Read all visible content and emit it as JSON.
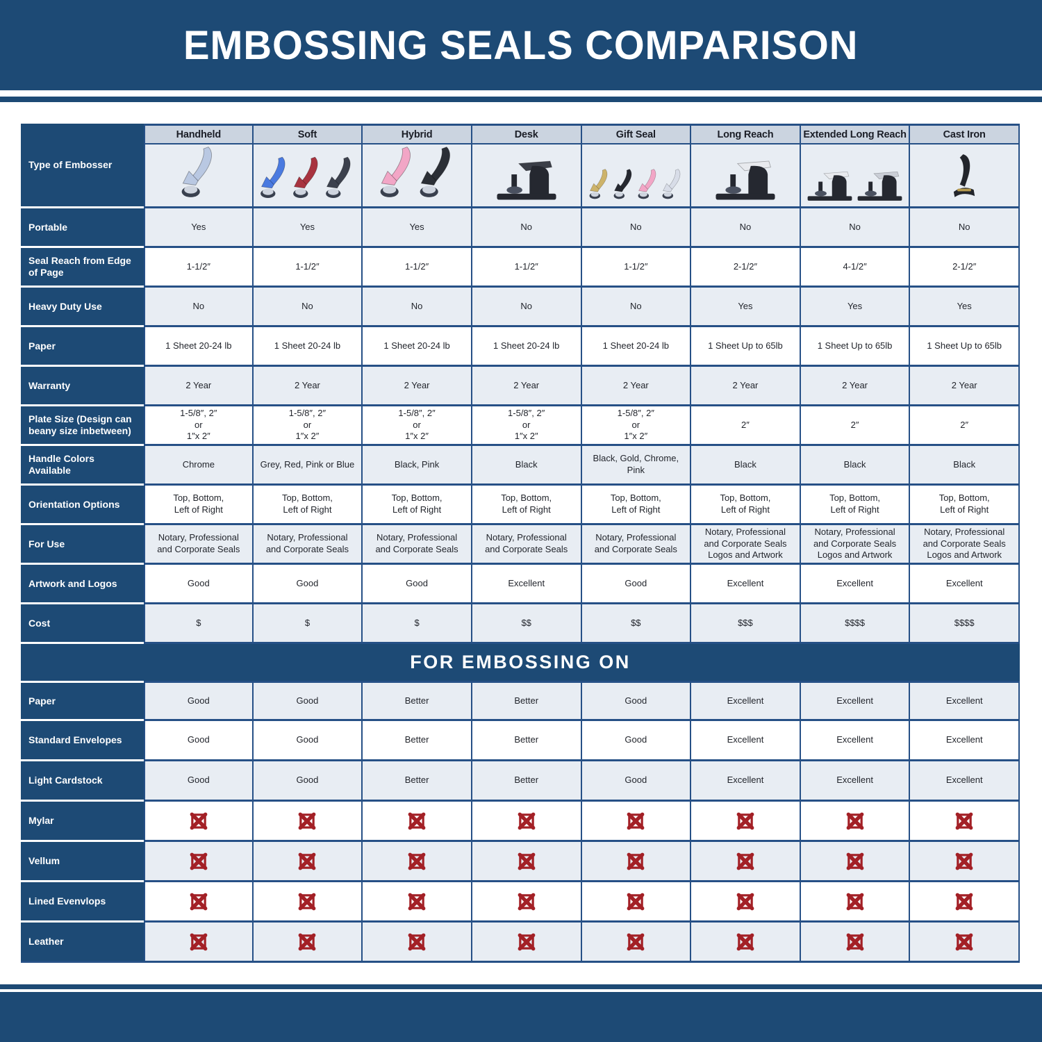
{
  "title": "EMBOSSING SEALS COMPARISON",
  "embossing_section_title": "FOR EMBOSSING ON",
  "type_of_embosser_label": "Type of Embosser",
  "colors": {
    "primary": "#1d4a75",
    "border": "#265086",
    "row_alt": "#e8edf3",
    "header_row": "#cbd4e0",
    "x_red": "#a32026"
  },
  "columns": [
    {
      "key": "handheld",
      "label": "Handheld",
      "devices": [
        {
          "style": "hand",
          "color": "#b9c8e2"
        }
      ]
    },
    {
      "key": "soft",
      "label": "Soft",
      "devices": [
        {
          "style": "hand",
          "color": "#4a7ae0"
        },
        {
          "style": "hand",
          "color": "#a8333f"
        },
        {
          "style": "hand",
          "color": "#3c414d"
        }
      ]
    },
    {
      "key": "hybrid",
      "label": "Hybrid",
      "devices": [
        {
          "style": "hand",
          "color": "#f2a6c6"
        },
        {
          "style": "hand",
          "color": "#2b2f36"
        }
      ]
    },
    {
      "key": "desk",
      "label": "Desk",
      "devices": [
        {
          "style": "desk",
          "color": "#252830",
          "lever": "#3a3e47"
        }
      ]
    },
    {
      "key": "gift-seal",
      "label": "Gift Seal",
      "devices": [
        {
          "style": "hand",
          "color": "#cdb36a"
        },
        {
          "style": "hand",
          "color": "#252830"
        },
        {
          "style": "hand",
          "color": "#f2a6c6"
        },
        {
          "style": "hand",
          "color": "#d8dde8"
        }
      ]
    },
    {
      "key": "long-reach",
      "label": "Long Reach",
      "devices": [
        {
          "style": "desk",
          "color": "#252830",
          "lever": "#e8eaee"
        }
      ]
    },
    {
      "key": "extended-long-reach",
      "label": "Extended Long Reach",
      "devices": [
        {
          "style": "desk",
          "color": "#252830",
          "lever": "#e8eaee"
        },
        {
          "style": "desk",
          "color": "#252830",
          "lever": "#caced6"
        }
      ]
    },
    {
      "key": "cast-iron",
      "label": "Cast Iron",
      "devices": [
        {
          "style": "cast",
          "color": "#22252b"
        }
      ]
    }
  ],
  "spec_rows": [
    {
      "key": "portable",
      "label": "Portable",
      "values": [
        "Yes",
        "Yes",
        "Yes",
        "No",
        "No",
        "No",
        "No",
        "No"
      ]
    },
    {
      "key": "seal-reach",
      "label": "Seal Reach from Edge of Page",
      "values": [
        "1-1/2″",
        "1-1/2″",
        "1-1/2″",
        "1-1/2″",
        "1-1/2″",
        "2-1/2″",
        "4-1/2″",
        "2-1/2″"
      ]
    },
    {
      "key": "heavy-duty-use",
      "label": "Heavy Duty Use",
      "values": [
        "No",
        "No",
        "No",
        "No",
        "No",
        "Yes",
        "Yes",
        "Yes"
      ]
    },
    {
      "key": "paper",
      "label": "Paper",
      "values": [
        "1 Sheet 20-24 lb",
        "1 Sheet 20-24 lb",
        "1 Sheet 20-24 lb",
        "1 Sheet 20-24 lb",
        "1 Sheet 20-24 lb",
        "1 Sheet Up to 65lb",
        "1 Sheet Up to 65lb",
        "1 Sheet Up to 65lb"
      ]
    },
    {
      "key": "warranty",
      "label": "Warranty",
      "values": [
        "2 Year",
        "2 Year",
        "2 Year",
        "2 Year",
        "2 Year",
        "2 Year",
        "2 Year",
        "2 Year"
      ]
    },
    {
      "key": "plate-size",
      "label": "Plate Size (Design can beany size inbetween)",
      "values": [
        "1-5/8″, 2″\nor\n1″x 2″",
        "1-5/8″, 2″\nor\n1″x 2″",
        "1-5/8″, 2″\nor\n1″x 2″",
        "1-5/8″, 2″\nor\n1″x 2″",
        "1-5/8″, 2″\nor\n1″x 2″",
        "2″",
        "2″",
        "2″"
      ]
    },
    {
      "key": "handle-colors",
      "label": "Handle Colors Available",
      "values": [
        "Chrome",
        "Grey, Red, Pink or Blue",
        "Black, Pink",
        "Black",
        "Black, Gold, Chrome, Pink",
        "Black",
        "Black",
        "Black"
      ]
    },
    {
      "key": "orientation-options",
      "label": "Orientation Options",
      "values": [
        "Top, Bottom,\nLeft of Right",
        "Top, Bottom,\nLeft of Right",
        "Top, Bottom,\nLeft of Right",
        "Top, Bottom,\nLeft of Right",
        "Top, Bottom,\nLeft of Right",
        "Top, Bottom,\nLeft of Right",
        "Top, Bottom,\nLeft of Right",
        "Top, Bottom,\nLeft of Right"
      ]
    },
    {
      "key": "for-use",
      "label": "For Use",
      "values": [
        "Notary, Professional\nand Corporate Seals",
        "Notary, Professional\nand Corporate Seals",
        "Notary, Professional\nand Corporate Seals",
        "Notary, Professional\nand Corporate Seals",
        "Notary, Professional\nand Corporate Seals",
        "Notary, Professional\nand Corporate Seals\nLogos and Artwork",
        "Notary, Professional\nand Corporate Seals\nLogos and Artwork",
        "Notary, Professional\nand Corporate Seals\nLogos and Artwork"
      ]
    },
    {
      "key": "artwork-and-logos",
      "label": "Artwork and Logos",
      "values": [
        "Good",
        "Good",
        "Good",
        "Excellent",
        "Good",
        "Excellent",
        "Excellent",
        "Excellent"
      ]
    },
    {
      "key": "cost",
      "label": "Cost",
      "values": [
        "$",
        "$",
        "$",
        "$$",
        "$$",
        "$$$",
        "$$$$",
        "$$$$"
      ]
    }
  ],
  "embossing_rows": [
    {
      "key": "paper",
      "label": "Paper",
      "values": [
        "Good",
        "Good",
        "Better",
        "Better",
        "Good",
        "Excellent",
        "Excellent",
        "Excellent"
      ]
    },
    {
      "key": "standard-envelopes",
      "label": "Standard Envelopes",
      "values": [
        "Good",
        "Good",
        "Better",
        "Better",
        "Good",
        "Excellent",
        "Excellent",
        "Excellent"
      ]
    },
    {
      "key": "light-cardstock",
      "label": "Light Cardstock",
      "values": [
        "Good",
        "Good",
        "Better",
        "Better",
        "Good",
        "Excellent",
        "Excellent",
        "Excellent"
      ]
    },
    {
      "key": "mylar",
      "label": "Mylar",
      "values": [
        "X",
        "X",
        "X",
        "X",
        "X",
        "X",
        "X",
        "X"
      ]
    },
    {
      "key": "vellum",
      "label": "Vellum",
      "values": [
        "X",
        "X",
        "X",
        "X",
        "X",
        "X",
        "X",
        "X"
      ]
    },
    {
      "key": "lined-evenvlops",
      "label": "Lined Evenvlops",
      "values": [
        "X",
        "X",
        "X",
        "X",
        "X",
        "X",
        "X",
        "X"
      ]
    },
    {
      "key": "leather",
      "label": "Leather",
      "values": [
        "X",
        "X",
        "X",
        "X",
        "X",
        "X",
        "X",
        "X"
      ]
    }
  ],
  "chart_data": {
    "type": "table",
    "title": "EMBOSSING SEALS COMPARISON",
    "section_titles": [
      "FOR EMBOSSING ON"
    ],
    "columns": [
      "Handheld",
      "Soft",
      "Hybrid",
      "Desk",
      "Gift Seal",
      "Long Reach",
      "Extended Long Reach",
      "Cast Iron"
    ],
    "rows": [
      {
        "label": "Portable",
        "values": [
          "Yes",
          "Yes",
          "Yes",
          "No",
          "No",
          "No",
          "No",
          "No"
        ]
      },
      {
        "label": "Seal Reach from Edge of Page",
        "values": [
          "1-1/2″",
          "1-1/2″",
          "1-1/2″",
          "1-1/2″",
          "1-1/2″",
          "2-1/2″",
          "4-1/2″",
          "2-1/2″"
        ]
      },
      {
        "label": "Heavy Duty Use",
        "values": [
          "No",
          "No",
          "No",
          "No",
          "No",
          "Yes",
          "Yes",
          "Yes"
        ]
      },
      {
        "label": "Paper",
        "values": [
          "1 Sheet 20-24 lb",
          "1 Sheet 20-24 lb",
          "1 Sheet 20-24 lb",
          "1 Sheet 20-24 lb",
          "1 Sheet 20-24 lb",
          "1 Sheet Up to 65lb",
          "1 Sheet Up to 65lb",
          "1 Sheet Up to 65lb"
        ]
      },
      {
        "label": "Warranty",
        "values": [
          "2 Year",
          "2 Year",
          "2 Year",
          "2 Year",
          "2 Year",
          "2 Year",
          "2 Year",
          "2 Year"
        ]
      },
      {
        "label": "Plate Size (Design can beany size inbetween)",
        "values": [
          "1-5/8″, 2″ or 1″x 2″",
          "1-5/8″, 2″ or 1″x 2″",
          "1-5/8″, 2″ or 1″x 2″",
          "1-5/8″, 2″ or 1″x 2″",
          "1-5/8″, 2″ or 1″x 2″",
          "2″",
          "2″",
          "2″"
        ]
      },
      {
        "label": "Handle Colors Available",
        "values": [
          "Chrome",
          "Grey, Red, Pink or Blue",
          "Black, Pink",
          "Black",
          "Black, Gold, Chrome, Pink",
          "Black",
          "Black",
          "Black"
        ]
      },
      {
        "label": "Orientation Options",
        "values": [
          "Top, Bottom, Left of Right",
          "Top, Bottom, Left of Right",
          "Top, Bottom, Left of Right",
          "Top, Bottom, Left of Right",
          "Top, Bottom, Left of Right",
          "Top, Bottom, Left of Right",
          "Top, Bottom, Left of Right",
          "Top, Bottom, Left of Right"
        ]
      },
      {
        "label": "For Use",
        "values": [
          "Notary, Professional and Corporate Seals",
          "Notary, Professional and Corporate Seals",
          "Notary, Professional and Corporate Seals",
          "Notary, Professional and Corporate Seals",
          "Notary, Professional and Corporate Seals",
          "Notary, Professional and Corporate Seals Logos and Artwork",
          "Notary, Professional and Corporate Seals Logos and Artwork",
          "Notary, Professional and Corporate Seals Logos and Artwork"
        ]
      },
      {
        "label": "Artwork and Logos",
        "values": [
          "Good",
          "Good",
          "Good",
          "Excellent",
          "Good",
          "Excellent",
          "Excellent",
          "Excellent"
        ]
      },
      {
        "label": "Cost",
        "values": [
          "$",
          "$",
          "$",
          "$$",
          "$$",
          "$$$",
          "$$$$",
          "$$$$"
        ]
      },
      {
        "label": "Paper (For Embossing On)",
        "values": [
          "Good",
          "Good",
          "Better",
          "Better",
          "Good",
          "Excellent",
          "Excellent",
          "Excellent"
        ]
      },
      {
        "label": "Standard Envelopes",
        "values": [
          "Good",
          "Good",
          "Better",
          "Better",
          "Good",
          "Excellent",
          "Excellent",
          "Excellent"
        ]
      },
      {
        "label": "Light Cardstock",
        "values": [
          "Good",
          "Good",
          "Better",
          "Better",
          "Good",
          "Excellent",
          "Excellent",
          "Excellent"
        ]
      },
      {
        "label": "Mylar",
        "values": [
          "not suitable",
          "not suitable",
          "not suitable",
          "not suitable",
          "not suitable",
          "not suitable",
          "not suitable",
          "not suitable"
        ]
      },
      {
        "label": "Vellum",
        "values": [
          "not suitable",
          "not suitable",
          "not suitable",
          "not suitable",
          "not suitable",
          "not suitable",
          "not suitable",
          "not suitable"
        ]
      },
      {
        "label": "Lined Evenvlops",
        "values": [
          "not suitable",
          "not suitable",
          "not suitable",
          "not suitable",
          "not suitable",
          "not suitable",
          "not suitable",
          "not suitable"
        ]
      },
      {
        "label": "Leather",
        "values": [
          "not suitable",
          "not suitable",
          "not suitable",
          "not suitable",
          "not suitable",
          "not suitable",
          "not suitable",
          "not suitable"
        ]
      }
    ]
  }
}
